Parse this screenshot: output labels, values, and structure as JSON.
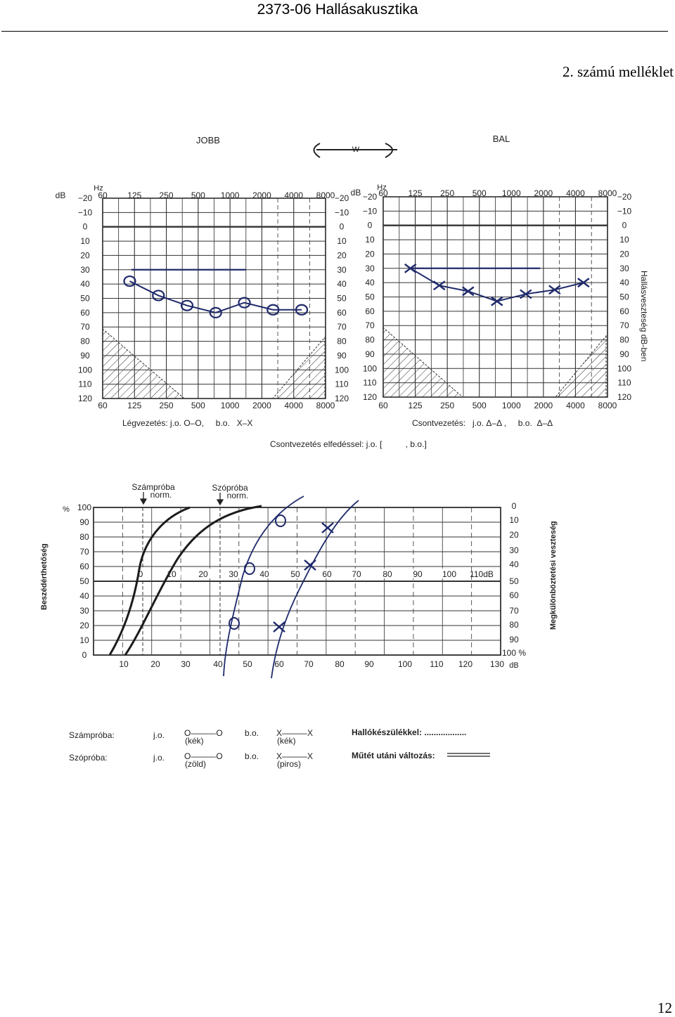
{
  "header": {
    "title": "2373-06 Hallásakusztika",
    "annex": "2. számú melléklet",
    "page_number": "12"
  },
  "audiogram": {
    "right_title": "JOBB",
    "left_title": "BAL",
    "weber_label": "W",
    "db_label": "dB",
    "hz_label": "Hz",
    "freq_labels_top": [
      "60",
      "125",
      "250",
      "500",
      "1000",
      "2000",
      "4000",
      "8000"
    ],
    "freq_labels_bottom": [
      "60",
      "125",
      "250",
      "500",
      "1000",
      "2000",
      "4000",
      "8000"
    ],
    "db_labels": [
      "−20",
      "−10",
      "0",
      "10",
      "20",
      "30",
      "40",
      "50",
      "60",
      "70",
      "80",
      "90",
      "100",
      "110",
      "120"
    ],
    "side_label": "Hallásveszteség dB-ben",
    "legend_air": "Légvezetés: j.o. O–O,     b.o.   X–X",
    "legend_bone": "Csontvezetés:   j.o. Δ–Δ ,     b.o.  Δ–Δ",
    "legend_masked": "Csontvezetés elfedéssel: j.o. [          , b.o.]",
    "right_air_db": [
      38,
      48,
      55,
      60,
      53,
      58,
      58
    ],
    "left_air_db": [
      30,
      42,
      46,
      53,
      48,
      45,
      40
    ],
    "threshold_line_db": 30
  },
  "speech": {
    "numbers_norm": "Számpróba\nnorm.",
    "words_norm": "Szópróba\nnorm.",
    "percent_label": "%",
    "percent_ticks": [
      "100",
      "90",
      "80",
      "70",
      "60",
      "50",
      "40",
      "30",
      "20",
      "10",
      "0"
    ],
    "y_axis_label": "Beszédérthetőség",
    "inner_db_ticks": [
      "0",
      "10",
      "20",
      "30",
      "40",
      "50",
      "60",
      "70",
      "80",
      "90",
      "100",
      "110dB"
    ],
    "bottom_db_ticks": [
      "10",
      "20",
      "30",
      "40",
      "50",
      "60",
      "70",
      "80",
      "90",
      "100",
      "110",
      "120",
      "130"
    ],
    "bottom_db_unit": "dB",
    "right_ticks": [
      "0",
      "10",
      "20",
      "30",
      "40",
      "50",
      "60",
      "70",
      "80",
      "90",
      "100 %"
    ],
    "right_axis_label": "Megkülönböztetési veszteség"
  },
  "legend": {
    "numbers_label": "Számpróba:",
    "words_label": "Szópróba:",
    "jo": "j.o.",
    "bo": "b.o.",
    "o_sym": "O———O",
    "x_sym": "X———X",
    "blue": "(kék)",
    "green": "(zöld)",
    "red": "(piros)",
    "hearing_aid": "Hallókészülékkel: ..................",
    "post_op": "Műtét utáni változás:"
  }
}
